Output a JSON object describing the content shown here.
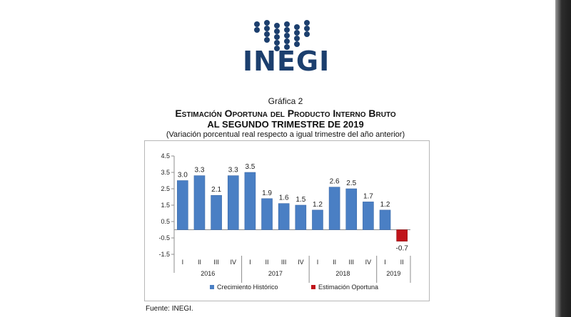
{
  "brand": {
    "name": "INEGI",
    "color": "#1c3f6e"
  },
  "chart_heading": {
    "number": "Gráfica 2",
    "title": "Estimación Oportuna del Producto Interno Bruto",
    "subtitle": "al segundo trimestre de 2019",
    "note": "(Variación porcentual real respecto a igual trimestre del año anterior)"
  },
  "chart_data": {
    "type": "bar",
    "categories": [
      "I",
      "II",
      "III",
      "IV",
      "I",
      "II",
      "III",
      "IV",
      "I",
      "II",
      "III",
      "IV",
      "I",
      "II"
    ],
    "years": [
      {
        "label": "2016",
        "quarters": 4
      },
      {
        "label": "2017",
        "quarters": 4
      },
      {
        "label": "2018",
        "quarters": 4
      },
      {
        "label": "2019",
        "quarters": 2
      }
    ],
    "series": [
      {
        "name": "Crecimiento  Histórico",
        "color": "#4a7fc4",
        "values": [
          3.0,
          3.3,
          2.1,
          3.3,
          3.5,
          1.9,
          1.6,
          1.5,
          1.2,
          2.6,
          2.5,
          1.7,
          1.2,
          null
        ]
      },
      {
        "name": "Estimación Oportuna",
        "color": "#c0141a",
        "values": [
          null,
          null,
          null,
          null,
          null,
          null,
          null,
          null,
          null,
          null,
          null,
          null,
          null,
          -0.7
        ]
      }
    ],
    "data_labels": [
      "3.0",
      "3.3",
      "2.1",
      "3.3",
      "3.5",
      "1.9",
      "1.6",
      "1.5",
      "1.2",
      "2.6",
      "2.5",
      "1.7",
      "1.2",
      "-0.7"
    ],
    "yticks": [
      "4.5",
      "3.5",
      "2.5",
      "1.5",
      "0.5",
      "-0.5",
      "-1.5"
    ],
    "ylim": [
      -1.5,
      4.5
    ],
    "grid": false,
    "legend_position": "bottom"
  },
  "source": "Fuente: INEGI."
}
